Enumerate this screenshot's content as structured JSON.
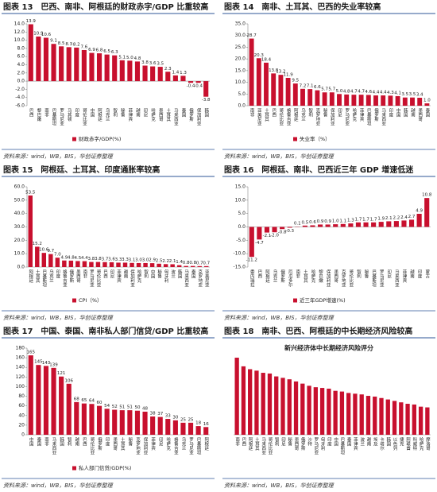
{
  "chart_data": [
    {
      "type": "bar",
      "title": "图表 13　巴西、南非、阿根廷的财政赤字/GDP 比重较高",
      "source": "资料来源：wind，WB，BIS，华创证券整理",
      "categories": [
        "巴西",
        "黎巴嫩",
        "南非",
        "巴基斯坦",
        "罗马尼亚",
        "马其顿",
        "印度",
        "哥伦比亚",
        "中国",
        "阿根廷",
        "乌克兰",
        "智利",
        "秘鲁",
        "菲律宾",
        "越南",
        "印尼",
        "哈萨克",
        "墨西哥",
        "土耳其",
        "马来西亚",
        "泰国",
        "俄罗斯",
        "保加利亚",
        "韩国"
      ],
      "series": [
        {
          "name": "财政赤字/GDP(%)",
          "color": "#c8102e",
          "values": [
            13.9,
            10.9,
            10.6,
            9.1,
            8.5,
            8.3,
            8.2,
            7.6,
            6.9,
            6.8,
            6.5,
            6.3,
            5.1,
            5.0,
            4.8,
            3.8,
            3.6,
            3.5,
            2.3,
            1.4,
            1.3,
            -0.4,
            -0.4,
            -3.8
          ],
          "value_labels": [
            "13.9",
            "10.9",
            "10.6",
            "9.1",
            "8.5",
            "8.3",
            "8.2",
            "7.6",
            "6.9",
            "6.8",
            "6.5",
            "6.3",
            "5.1",
            "5.0",
            "4.8",
            "3.8",
            "3.6",
            "3.5",
            "2.3",
            "1.4",
            "1.3",
            "-0.4",
            "-0.4",
            "-3.8"
          ]
        }
      ],
      "ylim": [
        -6,
        14
      ],
      "yticks": [
        {
          "value": -6,
          "label": "-6.0"
        },
        {
          "value": -4,
          "label": "-4.0"
        },
        {
          "value": -2,
          "label": "-2.0"
        },
        {
          "value": 0,
          "label": "0.0"
        },
        {
          "value": 2,
          "label": "2.0"
        },
        {
          "value": 4,
          "label": "4.0"
        },
        {
          "value": 6,
          "label": "6.0"
        },
        {
          "value": 8,
          "label": "8.0"
        },
        {
          "value": 10,
          "label": "10.0"
        },
        {
          "value": 12,
          "label": "12.0"
        },
        {
          "value": 14,
          "label": "14.0"
        }
      ]
    },
    {
      "type": "bar",
      "title": "图表 14　南非、土耳其、巴西的失业率较高",
      "source": "资料来源：wind，WB，BIS，华创证券整理",
      "categories": [
        "南非",
        "亚美尼亚",
        "土耳其",
        "巴西",
        "哥伦比亚",
        "格鲁吉亚",
        "阿根廷",
        "乌克兰",
        "智利",
        "克罗地亚",
        "秘鲁",
        "保加利亚",
        "印尼",
        "罗马尼亚",
        "哈萨克",
        "菲律宾",
        "巴基斯坦",
        "俄罗斯",
        "马来西亚",
        "印度",
        "中国",
        "韩国",
        "越南",
        "墨西哥",
        "泰国"
      ],
      "series": [
        {
          "name": "失业率（%）",
          "color": "#c8102e",
          "values": [
            28.7,
            20.3,
            18.4,
            13.8,
            13.2,
            11.9,
            9.5,
            7.2,
            7.1,
            6.6,
            5.7,
            5.7,
            5.0,
            4.8,
            4.7,
            4.7,
            4.6,
            4.4,
            4.4,
            4.3,
            4.1,
            3.5,
            3.5,
            3.4,
            1.0
          ],
          "value_labels": [
            "28.7",
            "20.3",
            "18.4",
            "13.8",
            "13.2",
            "11.9",
            "9.5",
            "7.2",
            "7.1",
            "6.6",
            "5.7",
            "5.7",
            "5.0",
            "4.8",
            "4.7",
            "4.7",
            "4.6",
            "4.4",
            "4.4",
            "4.3",
            "4.1",
            "3.5",
            "3.5",
            "3.4",
            "1.0"
          ]
        }
      ],
      "ylim": [
        0,
        35
      ],
      "yticks": [
        {
          "value": 0,
          "label": "0.0"
        },
        {
          "value": 5,
          "label": "5.0"
        },
        {
          "value": 10,
          "label": "10.0"
        },
        {
          "value": 15,
          "label": "15.0"
        },
        {
          "value": 20,
          "label": "20.0"
        },
        {
          "value": 25,
          "label": "25.0"
        },
        {
          "value": 30,
          "label": "30.0"
        },
        {
          "value": 35,
          "label": "35.0"
        }
      ]
    },
    {
      "type": "bar",
      "title": "图表 15　阿根廷、土耳其、印度通胀率较高",
      "source": "资料来源：wind，WB，BIS，华创证券整理",
      "categories": [
        "阿根廷",
        "土耳其",
        "巴基斯坦",
        "乌克兰",
        "印度",
        "格鲁吉亚",
        "俄罗斯",
        "墨西哥",
        "南非",
        "罗马尼亚",
        "哥伦比亚",
        "巴西",
        "印尼",
        "菲律宾",
        "越南",
        "保加利亚",
        "哈萨克",
        "智利",
        "中国",
        "秘鲁",
        "匈牙利",
        "波兰",
        "韩国",
        "马来西亚",
        "泰国",
        "克罗地亚",
        "亚美尼亚"
      ],
      "series": [
        {
          "name": "CPI（%）",
          "color": "#c8102e",
          "values": [
            53.5,
            15.2,
            10.6,
            9.7,
            7.0,
            4.9,
            4.8,
            4.5,
            4.4,
            3.8,
            3.8,
            3.7,
            3.6,
            3.3,
            3.3,
            3.1,
            3.0,
            3.0,
            2.9,
            2.5,
            2.2,
            2.1,
            1.4,
            0.8,
            0.8,
            0.7,
            0.7
          ],
          "value_labels": [
            "53.5",
            "15.2",
            "10.6",
            "9.7",
            "7.0",
            "4.9",
            "4.8",
            "4.5",
            "4.4",
            "3.8",
            "3.8",
            "3.7",
            "3.6",
            "3.3",
            "3.3",
            "3.1",
            "3.0",
            "3.0",
            "2.9",
            "2.5",
            "2.2",
            "2.1",
            "1.4",
            "0.8",
            "0.8",
            "0.7",
            "0.7"
          ]
        }
      ],
      "ylim": [
        0,
        60
      ],
      "yticks": [
        {
          "value": 0,
          "label": "0.0"
        },
        {
          "value": 10,
          "label": "10.0"
        },
        {
          "value": 20,
          "label": "20.0"
        },
        {
          "value": 30,
          "label": "30.0"
        },
        {
          "value": 40,
          "label": "40.0"
        },
        {
          "value": 50,
          "label": "50.0"
        },
        {
          "value": 60,
          "label": "60.0"
        }
      ]
    },
    {
      "type": "bar",
      "title": "图表 16　阿根廷、南非、巴西近三年 GDP 增速低迷",
      "source": "资料来源：wind，WB，BIS，华创证券整理",
      "categories": [
        "委内瑞拉",
        "巴西",
        "阿根廷",
        "乌克兰",
        "俄罗斯",
        "厄瓜多尔",
        "南非",
        "土耳其",
        "哈萨克",
        "黎巴嫩",
        "保加利亚",
        "墨西哥",
        "克罗地亚",
        "哥伦比亚",
        "智利",
        "秘鲁",
        "巴基斯坦",
        "罗马尼亚",
        "印尼",
        "马来西亚",
        "菲律宾",
        "越南",
        "印度",
        "蒙古"
      ],
      "series": [
        {
          "name": "近三年GDP增速(%)",
          "color": "#c8102e",
          "values": [
            -11.2,
            -4.7,
            -2.1,
            -2.0,
            -0.8,
            -0.3,
            0.1,
            0.5,
            0.6,
            0.9,
            0.9,
            1.0,
            1.1,
            1.3,
            1.7,
            1.7,
            1.7,
            1.9,
            2.1,
            2.2,
            2.4,
            2.7,
            4.9,
            10.8
          ],
          "value_labels": [
            "-11.2",
            "-4.7",
            "-2.1",
            "-2.0",
            "-0.8",
            "-0.3",
            "0.1",
            "0.5",
            "0.6",
            "0.9",
            "0.9",
            "1.0",
            "1.1",
            "1.3",
            "1.7",
            "1.7",
            "1.7",
            "1.9",
            "2.1",
            "2.2",
            "2.4",
            "2.7",
            "4.9",
            "10.8"
          ]
        }
      ],
      "ylim": [
        -15,
        15
      ],
      "yticks": [
        {
          "value": -15,
          "label": "-15.0"
        },
        {
          "value": -10,
          "label": "-10.0"
        },
        {
          "value": -5,
          "label": "-5.0"
        },
        {
          "value": 0,
          "label": "0.0"
        },
        {
          "value": 5,
          "label": "5.0"
        },
        {
          "value": 10,
          "label": "10.0"
        },
        {
          "value": 15,
          "label": "15.0"
        }
      ]
    },
    {
      "type": "bar",
      "title": "图表 17　中国、泰国、南非私人部门信贷/GDP 比重较高",
      "source": "资料来源：wind，WB，BIS，华创证券整理",
      "categories": [
        "中国",
        "泰国",
        "南非",
        "马来西亚",
        "韩国",
        "智利",
        "越南",
        "巴西",
        "哥伦比亚",
        "俄罗斯",
        "印度",
        "墨西哥",
        "土耳其",
        "秘鲁",
        "克罗地亚",
        "保加利亚",
        "菲律宾",
        "印尼",
        "哈萨克",
        "格鲁吉亚",
        "乌克兰",
        "罗马尼亚",
        "巴基斯坦",
        "阿根廷"
      ],
      "series": [
        {
          "name": "私人部门信贷/GDP(%)",
          "color": "#c8102e",
          "values": [
            165,
            145,
            143,
            139,
            121,
            106,
            68,
            65,
            64,
            60,
            54,
            52,
            51,
            51,
            50,
            48,
            38,
            37,
            33,
            30,
            25,
            25,
            18,
            16
          ]
        }
      ],
      "ylim": [
        0,
        180
      ],
      "yticks": [
        0,
        20,
        40,
        60,
        80,
        100,
        120,
        140,
        160,
        180
      ]
    },
    {
      "type": "bar",
      "title": "图表 18　南非、巴西、阿根廷的中长期经济风险较高",
      "source": "资料来源：wind，WB，BIS，华创证券整理",
      "chart_title": "新兴经济体中长期经济风险评分",
      "categories": [
        "南非",
        "巴西",
        "阿根廷",
        "土耳其",
        "马来西亚",
        "哥伦比亚",
        "智利",
        "印尼",
        "秘鲁",
        "墨西哥",
        "俄罗斯",
        "沙特",
        "罗马尼亚",
        "匈牙利",
        "印度",
        "中国",
        "巴基斯坦",
        "泰国",
        "菲律宾",
        "波兰",
        "越南",
        "埃及",
        "卡塔尔",
        "韩国",
        "以色列",
        "捷克",
        "阿联酋",
        "科威特",
        "哈萨克",
        "摩洛哥"
      ],
      "series": [
        {
          "color": "#c8102e",
          "values": [
            107,
            95,
            91,
            89,
            86,
            85,
            81,
            79,
            77,
            74,
            71,
            68,
            66,
            65,
            64,
            61,
            60,
            58,
            57,
            56,
            54,
            53,
            51,
            49,
            47,
            45,
            43,
            42,
            39,
            38
          ]
        }
      ]
    }
  ]
}
